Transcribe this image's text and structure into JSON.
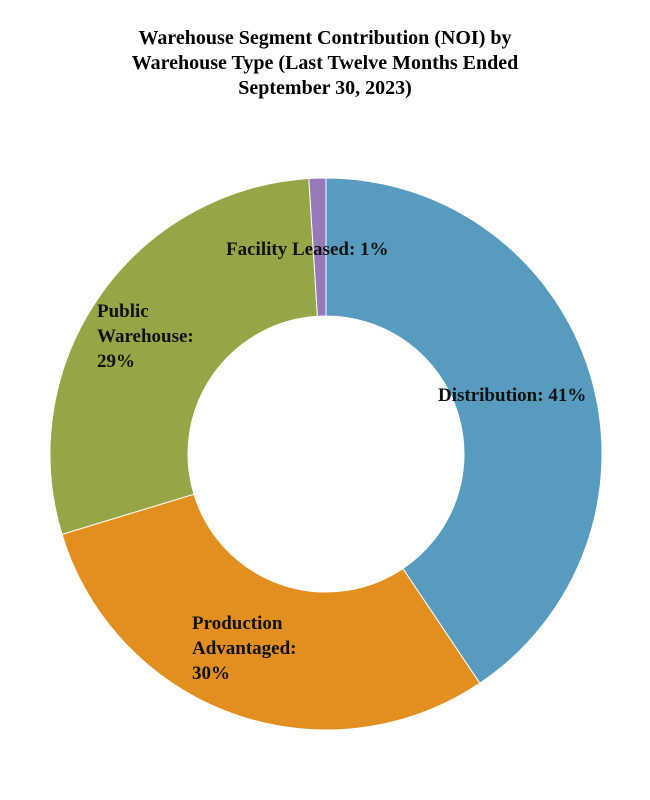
{
  "chart_data": {
    "type": "pie",
    "variant": "donut",
    "title_lines": [
      "Warehouse Segment Contribution (NOI) by",
      "Warehouse Type (Last Twelve Months Ended",
      "September 30, 2023)"
    ],
    "slices": [
      {
        "name": "Distribution",
        "value": 41,
        "color": "#579cbf",
        "label_lines": [
          "Distribution: 41%"
        ]
      },
      {
        "name": "Production Advantaged",
        "value": 30,
        "color": "#e28f1f",
        "label_lines": [
          "Production",
          "Advantaged:",
          "30%"
        ]
      },
      {
        "name": "Public Warehouse",
        "value": 29,
        "color": "#95a646",
        "label_lines": [
          "Public",
          "Warehouse:",
          "29%"
        ]
      },
      {
        "name": "Facility Leased",
        "value": 1,
        "color": "#9579b8",
        "label_lines": [
          "Facility Leased: 1%"
        ]
      }
    ],
    "legend": "none"
  }
}
